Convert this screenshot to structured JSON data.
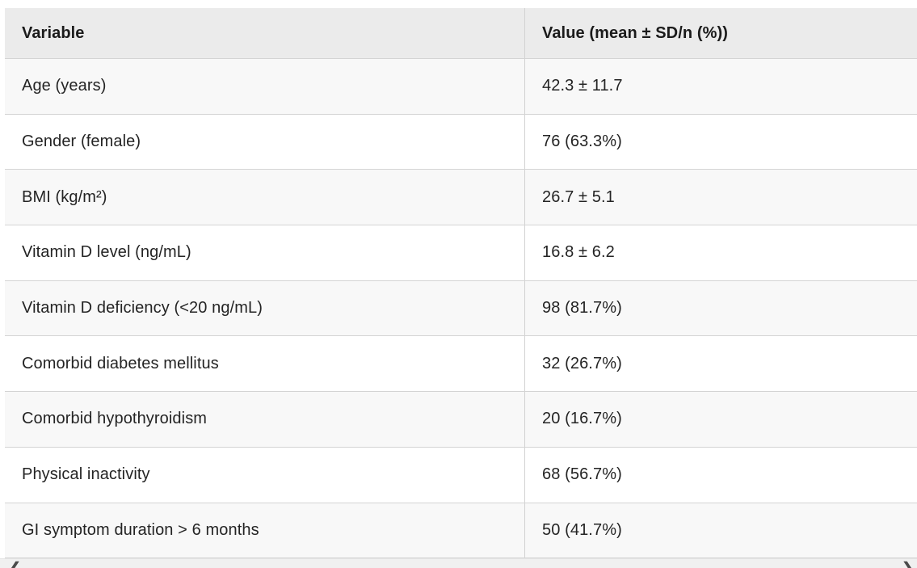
{
  "table": {
    "columns": [
      {
        "label": "Variable"
      },
      {
        "label": "Value (mean ± SD/n (%))"
      }
    ],
    "rows": [
      {
        "variable": "Age (years)",
        "value": "42.3 ± 11.7"
      },
      {
        "variable": "Gender (female)",
        "value": "76 (63.3%)"
      },
      {
        "variable": "BMI (kg/m²)",
        "value": "26.7 ± 5.1"
      },
      {
        "variable": "Vitamin D level (ng/mL)",
        "value": "16.8 ± 6.2"
      },
      {
        "variable": "Vitamin D deficiency (<20 ng/mL)",
        "value": "98 (81.7%)"
      },
      {
        "variable": "Comorbid diabetes mellitus",
        "value": "32 (26.7%)"
      },
      {
        "variable": "Comorbid hypothyroidism",
        "value": "20 (16.7%)"
      },
      {
        "variable": "Physical inactivity",
        "value": "68 (56.7%)"
      },
      {
        "variable": "GI symptom duration > 6 months",
        "value": "50 (41.7%)"
      }
    ]
  },
  "scroll_nav": {
    "left_arrow_icon": "❮",
    "right_arrow_icon": "❯"
  },
  "colors": {
    "header_bg": "#ebebeb",
    "row_alt_bg": "#f8f8f8",
    "row_bg": "#ffffff",
    "border": "#d4d4d4",
    "text": "#242424",
    "scroll_track_bg": "#f0f0f0"
  }
}
